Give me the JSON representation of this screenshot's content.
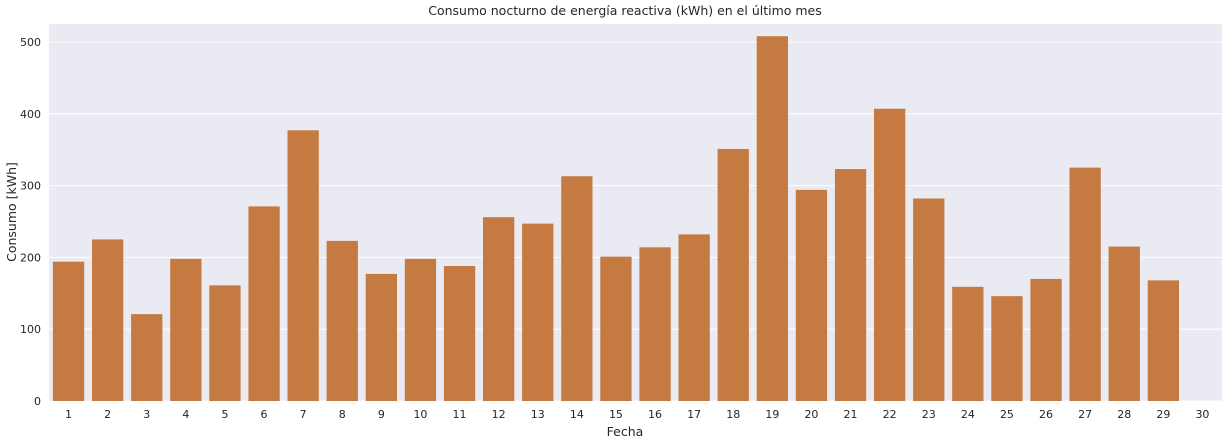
{
  "chart_data": {
    "type": "bar",
    "title": "Consumo nocturno de energía reactiva (kWh) en el último mes",
    "xlabel": "Fecha",
    "ylabel": "Consumo [kWh]",
    "categories": [
      "1",
      "2",
      "3",
      "4",
      "5",
      "6",
      "7",
      "8",
      "9",
      "10",
      "11",
      "12",
      "13",
      "14",
      "15",
      "16",
      "17",
      "18",
      "19",
      "20",
      "21",
      "22",
      "23",
      "24",
      "25",
      "26",
      "27",
      "28",
      "29",
      "30"
    ],
    "values": [
      194,
      225,
      121,
      198,
      161,
      271,
      377,
      223,
      177,
      198,
      188,
      256,
      247,
      313,
      201,
      214,
      232,
      351,
      508,
      294,
      323,
      407,
      282,
      159,
      146,
      170,
      325,
      215,
      168,
      0
    ],
    "ylim": [
      0,
      525
    ],
    "yticks": [
      0,
      100,
      200,
      300,
      400,
      500
    ],
    "grid": true,
    "bar_color": "#c47a40",
    "background_color": "#eaeaf2",
    "grid_color": "#ffffff"
  }
}
